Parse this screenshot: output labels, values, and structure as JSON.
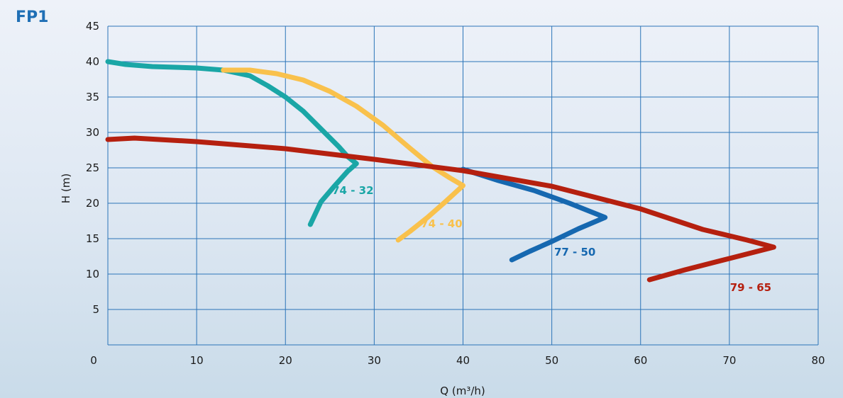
{
  "title": "FP1",
  "chart_data": {
    "type": "line",
    "xlabel": "Q (m³/h)",
    "ylabel": "H (m)",
    "xlim": [
      0,
      80
    ],
    "ylim": [
      0,
      45
    ],
    "x_ticks": [
      0,
      10,
      20,
      30,
      40,
      50,
      60,
      70,
      80
    ],
    "y_ticks": [
      5,
      10,
      15,
      20,
      25,
      30,
      35,
      40,
      45
    ],
    "grid": true,
    "series": [
      {
        "name": "74 - 32",
        "color": "#1aa6a6",
        "points": [
          [
            0,
            40
          ],
          [
            2,
            39.6
          ],
          [
            5,
            39.3
          ],
          [
            10,
            39.1
          ],
          [
            13,
            38.8
          ],
          [
            16,
            38
          ],
          [
            18,
            36.6
          ],
          [
            20,
            35
          ],
          [
            22,
            33
          ],
          [
            24,
            30.5
          ],
          [
            26,
            28
          ],
          [
            27,
            26.6
          ],
          [
            28,
            25.6
          ],
          [
            27,
            24.5
          ],
          [
            25.5,
            22.4
          ],
          [
            24,
            20.2
          ],
          [
            22.8,
            17
          ]
        ]
      },
      {
        "name": "74 - 40",
        "color": "#f9c14c",
        "points": [
          [
            13,
            38.8
          ],
          [
            16,
            38.8
          ],
          [
            19,
            38.3
          ],
          [
            22,
            37.4
          ],
          [
            25,
            35.8
          ],
          [
            28,
            33.7
          ],
          [
            31,
            31
          ],
          [
            34,
            27.8
          ],
          [
            36.5,
            25.2
          ],
          [
            38.5,
            23.6
          ],
          [
            40,
            22.5
          ],
          [
            38,
            20.2
          ],
          [
            36,
            18
          ],
          [
            34,
            16
          ],
          [
            32.7,
            14.8
          ]
        ]
      },
      {
        "name": "77 - 50",
        "color": "#1668b0",
        "points": [
          [
            40,
            24.8
          ],
          [
            44,
            23.2
          ],
          [
            48,
            21.8
          ],
          [
            52,
            20
          ],
          [
            56,
            18
          ],
          [
            53,
            16.4
          ],
          [
            50,
            14.6
          ],
          [
            47.5,
            13.2
          ],
          [
            45.5,
            12
          ]
        ]
      },
      {
        "name": "79 - 65",
        "color": "#b5200f",
        "points": [
          [
            0,
            29
          ],
          [
            3,
            29.2
          ],
          [
            10,
            28.7
          ],
          [
            20,
            27.7
          ],
          [
            30,
            26.2
          ],
          [
            40,
            24.6
          ],
          [
            50,
            22.4
          ],
          [
            60,
            19.2
          ],
          [
            67,
            16.3
          ],
          [
            72,
            14.8
          ],
          [
            75,
            13.8
          ],
          [
            70,
            12.2
          ],
          [
            65,
            10.6
          ],
          [
            61,
            9.2
          ]
        ]
      }
    ],
    "labels": [
      {
        "text": "74 - 32",
        "series": 0,
        "x": 27.6,
        "y": 21.3
      },
      {
        "text": "74 - 40",
        "series": 1,
        "x": 37.6,
        "y": 16.6
      },
      {
        "text": "77 - 50",
        "series": 2,
        "x": 52.6,
        "y": 12.6
      },
      {
        "text": "79 - 65",
        "series": 3,
        "x": 72.4,
        "y": 7.6
      }
    ]
  }
}
